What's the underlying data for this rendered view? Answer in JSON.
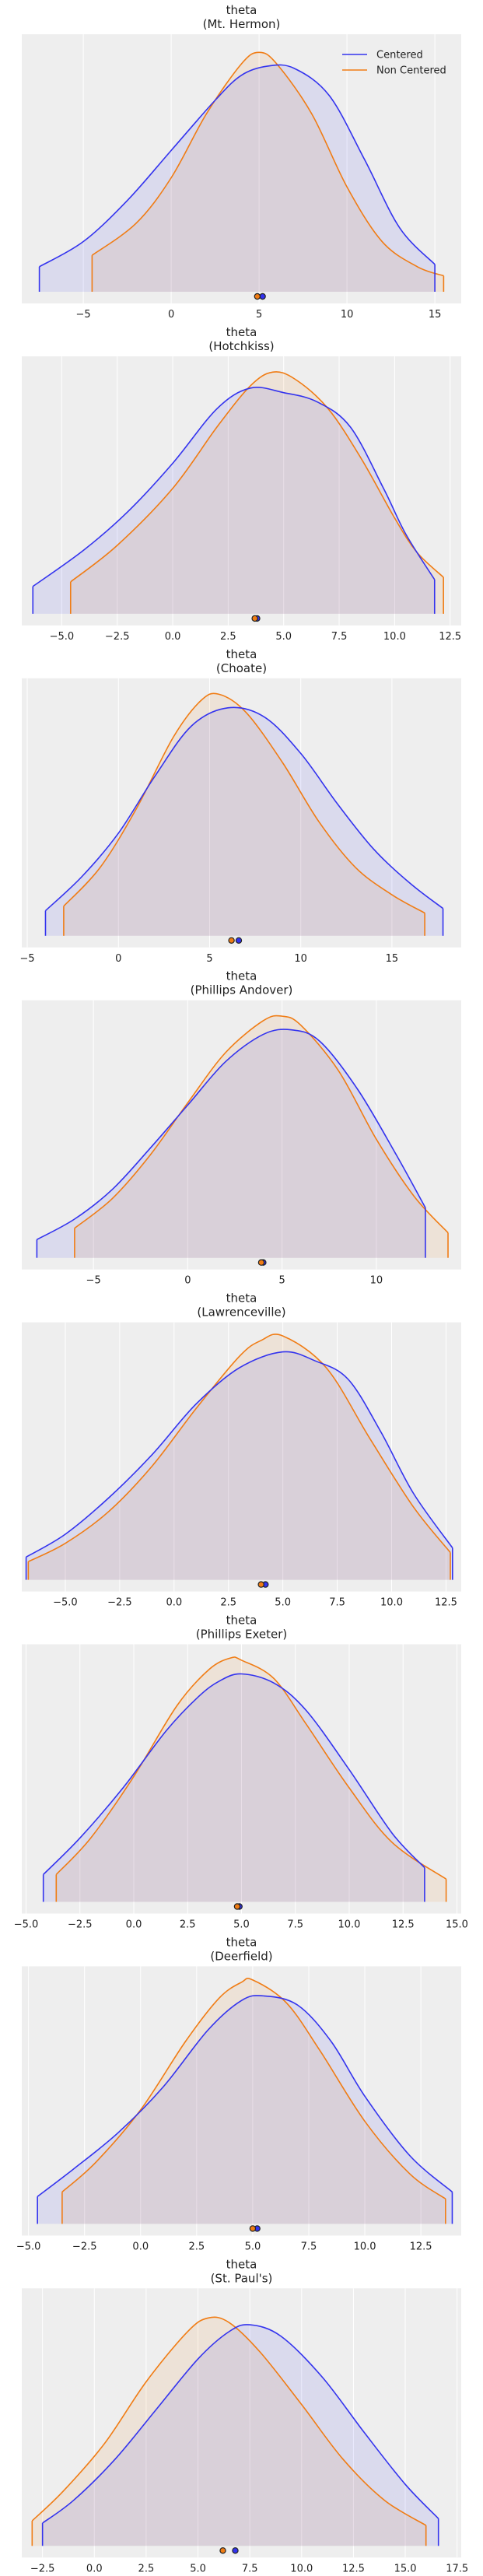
{
  "colors": {
    "centered": "#3333ee",
    "non_centered": "#f07c14",
    "panel_background": "#eeeeee",
    "grid": "#ffffff"
  },
  "chart_data": {
    "type": "area",
    "grid": true,
    "legend": {
      "placement": "top-right",
      "entries": [
        "Centered",
        "Non Centered"
      ]
    },
    "panels": [
      {
        "title": "theta",
        "subtitle": "(Mt. Hermon)",
        "xlim": [
          -8.5,
          16.5
        ],
        "xticks": [
          "−5",
          "0",
          "5",
          "10",
          "15"
        ],
        "xtick_values": [
          -5,
          0,
          5,
          10,
          15
        ],
        "series": [
          {
            "name": "Centered",
            "range": [
              -7.5,
              15.0
            ],
            "x": [
              -7.5,
              -5,
              -2.5,
              0,
              2.5,
              4,
              5.5,
              7,
              9,
              11,
              13,
              15
            ],
            "density": [
              0.11,
              0.22,
              0.4,
              0.62,
              0.84,
              0.95,
              0.99,
              0.98,
              0.86,
              0.58,
              0.28,
              0.12
            ]
          },
          {
            "name": "Non Centered",
            "range": [
              -4.5,
              15.5
            ],
            "x": [
              -4.5,
              -2,
              0,
              2,
              4,
              5,
              6,
              8,
              10,
              12,
              14,
              15.5
            ],
            "density": [
              0.16,
              0.3,
              0.5,
              0.78,
              1.0,
              1.05,
              1.0,
              0.78,
              0.46,
              0.22,
              0.11,
              0.07
            ]
          }
        ],
        "means": [
          5.2,
          4.9
        ]
      },
      {
        "title": "theta",
        "subtitle": "(Hotchkiss)",
        "xlim": [
          -6.8,
          13.0
        ],
        "xticks": [
          "−5.0",
          "−2.5",
          "0.0",
          "2.5",
          "5.0",
          "7.5",
          "10.0",
          "12.5"
        ],
        "xtick_values": [
          -5,
          -2.5,
          0,
          2.5,
          5,
          7.5,
          10,
          12.5
        ],
        "series": [
          {
            "name": "Centered",
            "range": [
              -6.3,
              11.8
            ],
            "x": [
              -6.3,
              -4,
              -2,
              0,
              2,
              3.5,
              5,
              6.5,
              8,
              9.5,
              10.5,
              11.8
            ],
            "density": [
              0.12,
              0.28,
              0.45,
              0.66,
              0.9,
              0.99,
              0.97,
              0.93,
              0.82,
              0.55,
              0.35,
              0.15
            ]
          },
          {
            "name": "Non Centered",
            "range": [
              -4.6,
              12.2
            ],
            "x": [
              -4.6,
              -2.5,
              0,
              2,
              3.5,
              4.5,
              5.5,
              7,
              8.5,
              10,
              11,
              12.2
            ],
            "density": [
              0.14,
              0.3,
              0.55,
              0.82,
              1.0,
              1.06,
              1.03,
              0.9,
              0.68,
              0.42,
              0.27,
              0.16
            ]
          }
        ],
        "means": [
          3.8,
          3.7
        ]
      },
      {
        "title": "theta",
        "subtitle": "(Choate)",
        "xlim": [
          -5.3,
          18.8
        ],
        "xticks": [
          "−5",
          "0",
          "5",
          "10",
          "15"
        ],
        "xtick_values": [
          -5,
          0,
          5,
          10,
          15
        ],
        "series": [
          {
            "name": "Centered",
            "range": [
              -4.0,
              17.8
            ],
            "x": [
              -4,
              -2,
              0,
              2,
              4,
              6,
              8,
              10,
              12,
              14,
              16,
              17.8
            ],
            "density": [
              0.11,
              0.26,
              0.45,
              0.7,
              0.92,
              1.0,
              0.96,
              0.8,
              0.58,
              0.38,
              0.23,
              0.12
            ]
          },
          {
            "name": "Non Centered",
            "range": [
              -3.0,
              16.8
            ],
            "x": [
              -3,
              -1,
              1,
              3,
              4.5,
              5.5,
              7,
              9,
              11,
              13,
              15,
              16.8
            ],
            "density": [
              0.13,
              0.3,
              0.56,
              0.87,
              1.03,
              1.06,
              0.98,
              0.76,
              0.5,
              0.3,
              0.18,
              0.1
            ]
          }
        ],
        "means": [
          6.6,
          6.2
        ]
      },
      {
        "title": "theta",
        "subtitle": "(Phillips Andover)",
        "xlim": [
          -8.8,
          14.5
        ],
        "xticks": [
          "−5",
          "0",
          "5",
          "10"
        ],
        "xtick_values": [
          -5,
          0,
          5,
          10
        ],
        "series": [
          {
            "name": "Centered",
            "range": [
              -8.0,
              12.6
            ],
            "x": [
              -8,
              -6,
              -4,
              -2,
              0,
              2,
              4,
              5.5,
              7,
              9,
              11,
              12.6
            ],
            "density": [
              0.08,
              0.17,
              0.3,
              0.48,
              0.67,
              0.86,
              0.98,
              1.0,
              0.95,
              0.74,
              0.46,
              0.22
            ]
          },
          {
            "name": "Non Centered",
            "range": [
              -6.0,
              13.8
            ],
            "x": [
              -6,
              -4,
              -2,
              0,
              2,
              4,
              5,
              6,
              8,
              10,
              12,
              13.8
            ],
            "density": [
              0.13,
              0.26,
              0.45,
              0.68,
              0.9,
              1.04,
              1.06,
              1.02,
              0.82,
              0.52,
              0.27,
              0.11
            ]
          }
        ],
        "means": [
          4.0,
          3.9
        ]
      },
      {
        "title": "theta",
        "subtitle": "(Lawrenceville)",
        "xlim": [
          -7.0,
          13.2
        ],
        "xticks": [
          "−5.0",
          "−2.5",
          "0.0",
          "2.5",
          "5.0",
          "7.5",
          "10.0",
          "12.5"
        ],
        "xtick_values": [
          -5,
          -2.5,
          0,
          2.5,
          5,
          7.5,
          10,
          12.5
        ],
        "series": [
          {
            "name": "Centered",
            "range": [
              -6.8,
              12.8
            ],
            "x": [
              -6.8,
              -5,
              -3,
              -1,
              1,
              3,
              5,
              6.5,
              8,
              9.5,
              11,
              12.8
            ],
            "density": [
              0.1,
              0.2,
              0.36,
              0.55,
              0.77,
              0.93,
              1.0,
              0.96,
              0.88,
              0.65,
              0.38,
              0.14
            ]
          },
          {
            "name": "Non Centered",
            "range": [
              -6.7,
              12.7
            ],
            "x": [
              -6.7,
              -5,
              -3,
              -1,
              1,
              3,
              4,
              5,
              7,
              9,
              11,
              12.7
            ],
            "density": [
              0.08,
              0.16,
              0.3,
              0.5,
              0.75,
              0.98,
              1.05,
              1.07,
              0.93,
              0.62,
              0.32,
              0.12
            ]
          }
        ],
        "means": [
          4.2,
          4.0
        ]
      },
      {
        "title": "theta",
        "subtitle": "(Phillips Exeter)",
        "xlim": [
          -5.2,
          15.2
        ],
        "xticks": [
          "−5.0",
          "−2.5",
          "0.0",
          "2.5",
          "5.0",
          "7.5",
          "10.0",
          "12.5",
          "15.0"
        ],
        "xtick_values": [
          -5,
          -2.5,
          0,
          2.5,
          5,
          7.5,
          10,
          12.5,
          15
        ],
        "series": [
          {
            "name": "Centered",
            "range": [
              -4.2,
              13.5
            ],
            "x": [
              -4.2,
              -2.5,
              -0.5,
              1.5,
              3,
              4,
              5,
              6.5,
              8,
              10,
              12,
              13.5
            ],
            "density": [
              0.12,
              0.28,
              0.5,
              0.75,
              0.9,
              0.97,
              1.0,
              0.96,
              0.84,
              0.58,
              0.3,
              0.15
            ]
          },
          {
            "name": "Non Centered",
            "range": [
              -3.6,
              14.5
            ],
            "x": [
              -3.6,
              -2,
              0,
              2,
              3.5,
              4.5,
              5,
              6.5,
              8,
              10,
              12,
              14.5
            ],
            "density": [
              0.12,
              0.28,
              0.55,
              0.86,
              1.02,
              1.07,
              1.06,
              0.98,
              0.78,
              0.5,
              0.26,
              0.1
            ]
          }
        ],
        "means": [
          4.9,
          4.8
        ]
      },
      {
        "title": "theta",
        "subtitle": "(Deerfield)",
        "xlim": [
          -5.3,
          14.3
        ],
        "xticks": [
          "−5.0",
          "−2.5",
          "0.0",
          "2.5",
          "5.0",
          "7.5",
          "10.0",
          "12.5"
        ],
        "xtick_values": [
          -5,
          -2.5,
          0,
          2.5,
          5,
          7.5,
          10,
          12.5
        ],
        "series": [
          {
            "name": "Centered",
            "range": [
              -4.6,
              13.9
            ],
            "x": [
              -4.6,
              -3,
              -1,
              1,
              3,
              4.5,
              5.5,
              7,
              8.5,
              10,
              12,
              13.9
            ],
            "density": [
              0.12,
              0.24,
              0.4,
              0.6,
              0.85,
              0.98,
              1.0,
              0.96,
              0.8,
              0.56,
              0.3,
              0.14
            ]
          },
          {
            "name": "Non Centered",
            "range": [
              -3.5,
              13.6
            ],
            "x": [
              -3.5,
              -2,
              0,
              2,
              3.5,
              4.5,
              5,
              6.5,
              8,
              10,
              12,
              13.6
            ],
            "density": [
              0.14,
              0.27,
              0.5,
              0.8,
              0.99,
              1.06,
              1.07,
              0.97,
              0.76,
              0.45,
              0.22,
              0.11
            ]
          }
        ],
        "means": [
          5.2,
          5.0
        ]
      },
      {
        "title": "theta",
        "subtitle": "(St. Paul's)",
        "xlim": [
          -3.5,
          17.7
        ],
        "xticks": [
          "−2.5",
          "0.0",
          "2.5",
          "5.0",
          "7.5",
          "10.0",
          "12.5",
          "15.0",
          "17.5"
        ],
        "xtick_values": [
          -2.5,
          0,
          2.5,
          5,
          7.5,
          10,
          12.5,
          15,
          17.5
        ],
        "series": [
          {
            "name": "Centered",
            "range": [
              -2.5,
              16.6
            ],
            "x": [
              -2.5,
              -1,
              1,
              3,
              5,
              6.5,
              7.5,
              9,
              11,
              13,
              15,
              16.6
            ],
            "density": [
              0.1,
              0.2,
              0.38,
              0.6,
              0.82,
              0.94,
              0.97,
              0.92,
              0.74,
              0.5,
              0.27,
              0.12
            ]
          },
          {
            "name": "Non Centered",
            "range": [
              -3.0,
              16.0
            ],
            "x": [
              -3,
              -1.5,
              0.5,
              2.5,
              4.5,
              5.5,
              6.5,
              8,
              10,
              12,
              14,
              16
            ],
            "density": [
              0.11,
              0.24,
              0.45,
              0.72,
              0.94,
              1.0,
              0.98,
              0.85,
              0.62,
              0.38,
              0.2,
              0.09
            ]
          }
        ],
        "means": [
          6.8,
          6.2
        ]
      }
    ]
  }
}
